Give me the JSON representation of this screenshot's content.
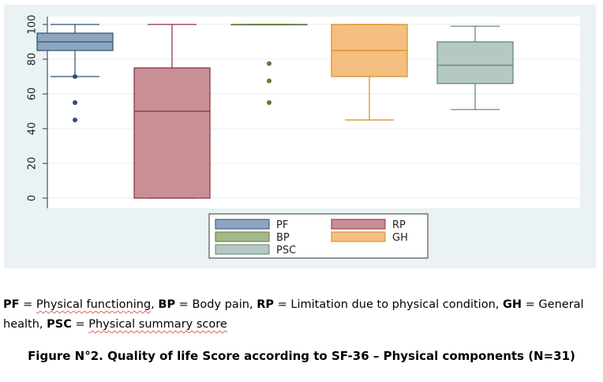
{
  "chart_data": {
    "type": "boxplot",
    "title": "",
    "xlabel": "",
    "ylabel": "",
    "ylim": [
      0,
      100
    ],
    "yticks": [
      0,
      20,
      40,
      60,
      80,
      100
    ],
    "grid": true,
    "legend_position": "bottom",
    "series": [
      {
        "name": "PF",
        "min": 70,
        "q1": 85,
        "median": 90,
        "q3": 95,
        "max": 100,
        "outliers": [
          70,
          55,
          45
        ],
        "fill": "#8da4c0",
        "stroke": "#2f4f73"
      },
      {
        "name": "RP",
        "min": 0,
        "q1": 0,
        "median": 50,
        "q3": 75,
        "max": 100,
        "outliers": [],
        "fill": "#c98f97",
        "stroke": "#8c2d3a"
      },
      {
        "name": "BP",
        "min": 100,
        "q1": 100,
        "median": 100,
        "q3": 100,
        "max": 100,
        "outliers": [
          77.5,
          67.5,
          55
        ],
        "fill": "#a3b98a",
        "stroke": "#5f7a3a"
      },
      {
        "name": "GH",
        "min": 45,
        "q1": 70,
        "median": 85,
        "q3": 100,
        "max": 100,
        "outliers": [],
        "fill": "#f4bf80",
        "stroke": "#d98a1e"
      },
      {
        "name": "PSC",
        "min": 51,
        "q1": 66,
        "median": 76.5,
        "q3": 90,
        "max": 99,
        "outliers": [],
        "fill": "#b3c9c1",
        "stroke": "#5f7f77"
      }
    ]
  },
  "caption": {
    "abbreviations": [
      {
        "abbr": "PF",
        "desc": "Physical functioning"
      },
      {
        "abbr": "BP",
        "desc": "Body pain"
      },
      {
        "abbr": "RP",
        "desc": "Limitation due to physical condition"
      },
      {
        "abbr": "GH",
        "desc": "General health"
      },
      {
        "abbr": "PSC",
        "desc": "Physical summary score"
      }
    ],
    "figure_caption": "Figure N°2. Quality of life Score according to SF-36 – Physical components (N=31)"
  }
}
